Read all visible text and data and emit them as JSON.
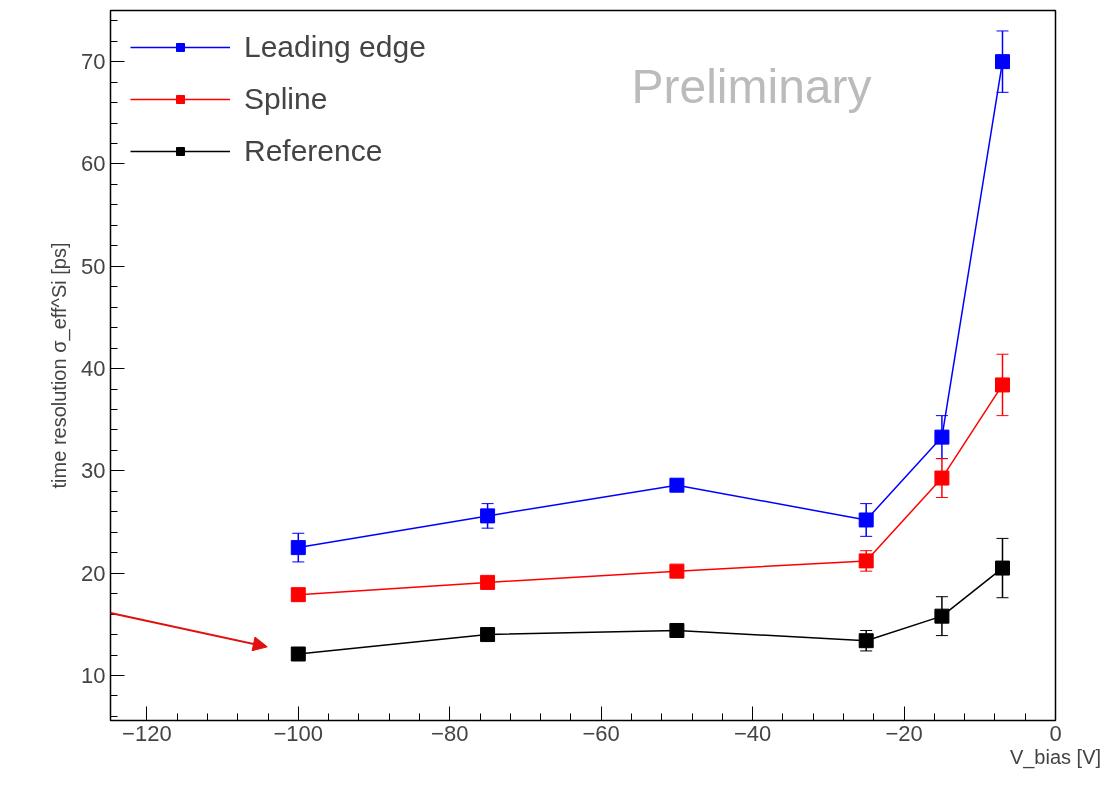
{
  "chart_data": {
    "type": "line",
    "xlabel": "V_bias [V]",
    "ylabel": "time resolution σ_eff^Si [ps]",
    "x": [
      -100,
      -75,
      -50,
      -25,
      -15,
      -7
    ],
    "series": [
      {
        "name": "Leading edge",
        "color": "#0000ff",
        "values": [
          22.5,
          25.6,
          28.6,
          25.2,
          33.3,
          70.0
        ],
        "errors": [
          1.4,
          1.2,
          0.5,
          1.6,
          2.1,
          3.0
        ]
      },
      {
        "name": "Spline",
        "color": "#ff0000",
        "values": [
          17.9,
          19.1,
          20.2,
          21.2,
          29.3,
          38.4
        ],
        "errors": [
          0.5,
          0.5,
          0.5,
          1.0,
          1.9,
          3.0
        ]
      },
      {
        "name": "Reference",
        "color": "#000000",
        "values": [
          12.1,
          14.0,
          14.4,
          13.4,
          15.8,
          20.5
        ],
        "errors": [
          0.4,
          0.5,
          0.5,
          1.0,
          1.9,
          2.9
        ]
      }
    ],
    "xlim": [
      -124.8,
      0
    ],
    "ylim": [
      5.6,
      75
    ],
    "xticks": [
      -120,
      -100,
      -80,
      -60,
      -40,
      -20,
      0
    ],
    "yticks": [
      10,
      20,
      30,
      40,
      50,
      60,
      70
    ],
    "annotations": [
      "Preliminary"
    ],
    "legend": "top left",
    "grid": false,
    "marker": "square",
    "line_style": "solid"
  }
}
